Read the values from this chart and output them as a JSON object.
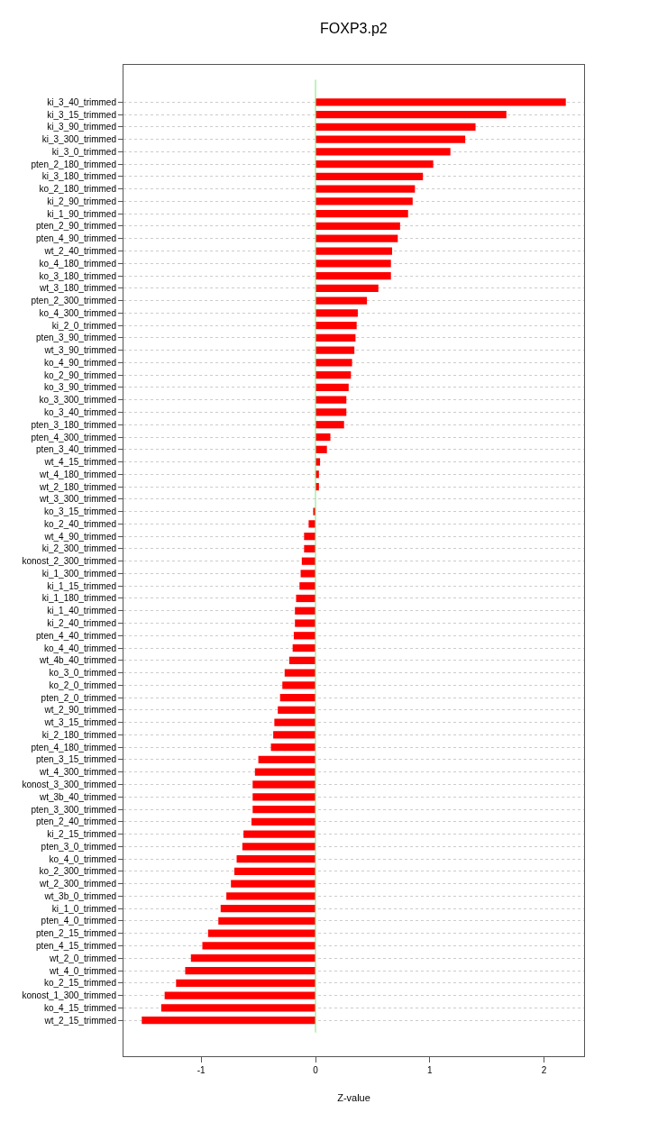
{
  "chart_data": {
    "type": "bar",
    "orientation": "horizontal",
    "title": "FOXP3.p2",
    "xlabel": "Z-value",
    "categories": [
      "ki_3_40_trimmed",
      "ki_3_15_trimmed",
      "ki_3_90_trimmed",
      "ki_3_300_trimmed",
      "ki_3_0_trimmed",
      "pten_2_180_trimmed",
      "ki_3_180_trimmed",
      "ko_2_180_trimmed",
      "ki_2_90_trimmed",
      "ki_1_90_trimmed",
      "pten_2_90_trimmed",
      "pten_4_90_trimmed",
      "wt_2_40_trimmed",
      "ko_4_180_trimmed",
      "ko_3_180_trimmed",
      "wt_3_180_trimmed",
      "pten_2_300_trimmed",
      "ko_4_300_trimmed",
      "ki_2_0_trimmed",
      "pten_3_90_trimmed",
      "wt_3_90_trimmed",
      "ko_4_90_trimmed",
      "ko_2_90_trimmed",
      "ko_3_90_trimmed",
      "ko_3_300_trimmed",
      "ko_3_40_trimmed",
      "pten_3_180_trimmed",
      "pten_4_300_trimmed",
      "pten_3_40_trimmed",
      "wt_4_15_trimmed",
      "wt_4_180_trimmed",
      "wt_2_180_trimmed",
      "wt_3_300_trimmed",
      "ko_3_15_trimmed",
      "ko_2_40_trimmed",
      "wt_4_90_trimmed",
      "ki_2_300_trimmed",
      "konost_2_300_trimmed",
      "ki_1_300_trimmed",
      "ki_1_15_trimmed",
      "ki_1_180_trimmed",
      "ki_1_40_trimmed",
      "ki_2_40_trimmed",
      "pten_4_40_trimmed",
      "ko_4_40_trimmed",
      "wt_4b_40_trimmed",
      "ko_3_0_trimmed",
      "ko_2_0_trimmed",
      "pten_2_0_trimmed",
      "wt_2_90_trimmed",
      "wt_3_15_trimmed",
      "ki_2_180_trimmed",
      "pten_4_180_trimmed",
      "pten_3_15_trimmed",
      "wt_4_300_trimmed",
      "konost_3_300_trimmed",
      "wt_3b_40_trimmed",
      "pten_3_300_trimmed",
      "pten_2_40_trimmed",
      "ki_2_15_trimmed",
      "pten_3_0_trimmed",
      "ko_4_0_trimmed",
      "ko_2_300_trimmed",
      "wt_2_300_trimmed",
      "wt_3b_0_trimmed",
      "ki_1_0_trimmed",
      "pten_4_0_trimmed",
      "pten_2_15_trimmed",
      "pten_4_15_trimmed",
      "wt_2_0_trimmed",
      "wt_4_0_trimmed",
      "ko_2_15_trimmed",
      "konost_1_300_trimmed",
      "ko_4_15_trimmed",
      "wt_2_15_trimmed"
    ],
    "values": [
      2.19,
      1.67,
      1.4,
      1.31,
      1.18,
      1.03,
      0.94,
      0.87,
      0.85,
      0.81,
      0.74,
      0.72,
      0.67,
      0.66,
      0.66,
      0.55,
      0.45,
      0.37,
      0.36,
      0.35,
      0.34,
      0.32,
      0.31,
      0.29,
      0.27,
      0.27,
      0.25,
      0.13,
      0.1,
      0.04,
      0.03,
      0.03,
      0.0,
      -0.02,
      -0.06,
      -0.1,
      -0.1,
      -0.12,
      -0.13,
      -0.14,
      -0.17,
      -0.18,
      -0.18,
      -0.19,
      -0.2,
      -0.23,
      -0.27,
      -0.29,
      -0.31,
      -0.33,
      -0.36,
      -0.37,
      -0.39,
      -0.5,
      -0.53,
      -0.55,
      -0.55,
      -0.55,
      -0.56,
      -0.63,
      -0.64,
      -0.69,
      -0.71,
      -0.74,
      -0.78,
      -0.83,
      -0.85,
      -0.94,
      -0.99,
      -1.09,
      -1.14,
      -1.22,
      -1.32,
      -1.35,
      -1.52
    ],
    "color": "#ff0000",
    "xlim": [
      -1.68,
      2.35
    ],
    "xticks": [
      -1,
      0,
      1,
      2
    ],
    "grid": "y",
    "legend": false,
    "ref_lines": [
      {
        "axis": "x",
        "value": 0,
        "color": "#90ee90"
      }
    ]
  }
}
